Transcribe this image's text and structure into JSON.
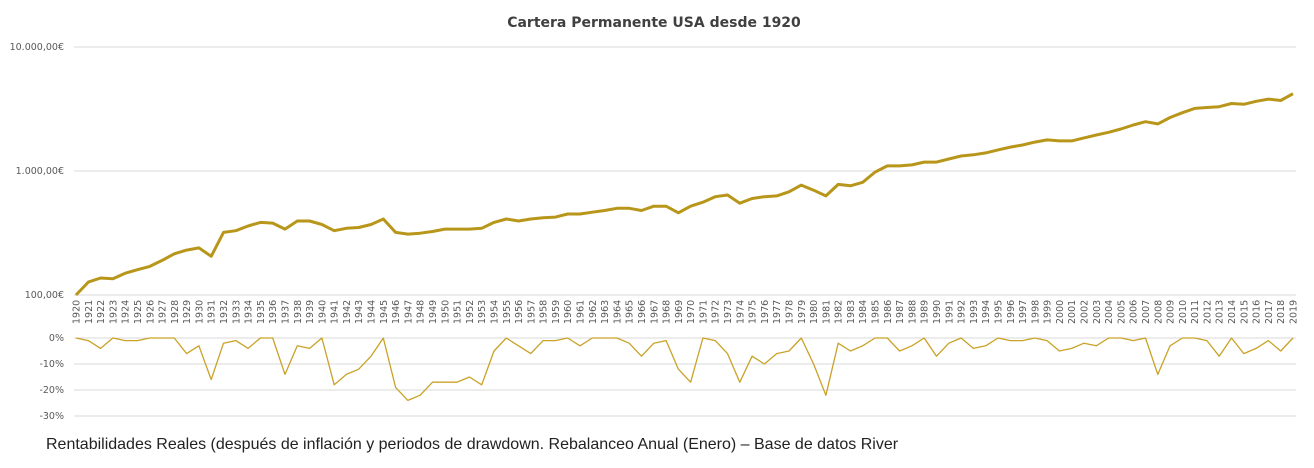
{
  "chart_data": [
    {
      "type": "line",
      "title": "Cartera Permanente USA desde 1920",
      "yscale": "log",
      "ylim": [
        100,
        10000
      ],
      "yticks": [
        "100,00 €",
        "1.000,00 €",
        "10.000,00 €"
      ],
      "grid": true,
      "color": "#b8961a",
      "x": [
        1920,
        1921,
        1922,
        1923,
        1924,
        1925,
        1926,
        1927,
        1928,
        1929,
        1930,
        1931,
        1932,
        1933,
        1934,
        1935,
        1936,
        1937,
        1938,
        1939,
        1940,
        1941,
        1942,
        1943,
        1944,
        1945,
        1946,
        1947,
        1948,
        1949,
        1950,
        1951,
        1952,
        1953,
        1954,
        1955,
        1956,
        1957,
        1958,
        1959,
        1960,
        1961,
        1962,
        1963,
        1964,
        1965,
        1966,
        1967,
        1968,
        1969,
        1970,
        1971,
        1972,
        1973,
        1974,
        1975,
        1976,
        1977,
        1978,
        1979,
        1980,
        1981,
        1982,
        1983,
        1984,
        1985,
        1986,
        1987,
        1988,
        1989,
        1990,
        1991,
        1992,
        1993,
        1994,
        1995,
        1996,
        1997,
        1998,
        1999,
        2000,
        2001,
        2002,
        2003,
        2004,
        2005,
        2006,
        2007,
        2008,
        2009,
        2010,
        2011,
        2012,
        2013,
        2014,
        2015,
        2016,
        2017,
        2018,
        2019
      ],
      "values": [
        100,
        127,
        137,
        135,
        150,
        160,
        170,
        190,
        215,
        230,
        240,
        205,
        320,
        330,
        360,
        385,
        380,
        340,
        395,
        395,
        370,
        330,
        345,
        350,
        370,
        410,
        320,
        310,
        315,
        325,
        340,
        340,
        340,
        345,
        385,
        410,
        395,
        410,
        420,
        425,
        450,
        450,
        465,
        480,
        500,
        500,
        480,
        520,
        520,
        460,
        520,
        560,
        620,
        640,
        550,
        600,
        620,
        630,
        680,
        770,
        700,
        630,
        780,
        760,
        810,
        980,
        1100,
        1100,
        1120,
        1180,
        1180,
        1250,
        1320,
        1350,
        1400,
        1480,
        1560,
        1620,
        1710,
        1780,
        1750,
        1750,
        1850,
        1950,
        2050,
        2180,
        2350,
        2500,
        2400,
        2700,
        2950,
        3200,
        3250,
        3300,
        3500,
        3450,
        3650,
        3800,
        3700,
        4200
      ]
    },
    {
      "type": "line",
      "ylim": [
        -30,
        0
      ],
      "yticks": [
        "0%",
        "-10%",
        "-20%",
        "-30%"
      ],
      "grid": true,
      "color": "#c9a227",
      "values": [
        0,
        -1,
        -4,
        0,
        -1,
        -1,
        0,
        0,
        0,
        -6,
        -3,
        -16,
        -2,
        -1,
        -4,
        0,
        0,
        -14,
        -3,
        -4,
        0,
        -18,
        -14,
        -12,
        -7,
        0,
        -19,
        -24,
        -22,
        -17,
        -17,
        -17,
        -15,
        -18,
        -5,
        0,
        -3,
        -6,
        -1,
        -1,
        0,
        -3,
        0,
        0,
        0,
        -2,
        -7,
        -2,
        -1,
        -12,
        -17,
        0,
        -1,
        -6,
        -17,
        -7,
        -10,
        -6,
        -5,
        0,
        -10,
        -22,
        -2,
        -5,
        -3,
        0,
        0,
        -5,
        -3,
        0,
        -7,
        -2,
        0,
        -4,
        -3,
        0,
        -1,
        -1,
        0,
        -1,
        -5,
        -4,
        -2,
        -3,
        0,
        0,
        -1,
        0,
        -14,
        -3,
        0,
        0,
        -1,
        -7,
        0,
        -6,
        -4,
        -1,
        -5,
        0
      ]
    }
  ],
  "caption": "Rentabilidades Reales (después de inflación y periodos de drawdown. Rebalanceo Anual (Enero) – Base de datos River"
}
